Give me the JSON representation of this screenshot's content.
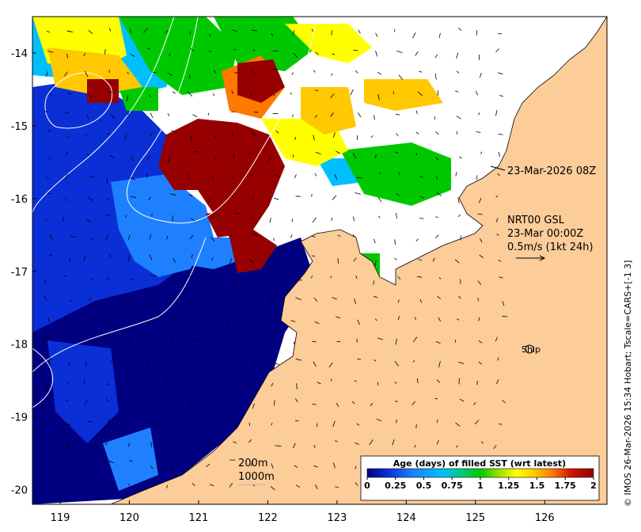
{
  "map": {
    "x_ticks": [
      "119",
      "120",
      "121",
      "122",
      "123",
      "124",
      "125",
      "126"
    ],
    "y_ticks": [
      "-14",
      "-15",
      "-16",
      "-17",
      "-18",
      "-19",
      "-20"
    ],
    "lon_range": [
      118.6,
      126.9
    ],
    "lat_range": [
      -20.2,
      -13.5
    ],
    "land_color": "#fccc99",
    "ocean_missing_color": "#ffffff"
  },
  "annotations": {
    "timestamp": "23-Mar-2026 08Z",
    "current_product": "NRT00 GSL",
    "current_time": "23-Mar 00:00Z",
    "current_scale": "0.5m/s (1kt 24h)",
    "ship_label": "Ship",
    "contour_200": "200m",
    "contour_1000": "1000m"
  },
  "colorbar": {
    "title": "Age (days) of filled SST (wrt latest)",
    "ticks": [
      "0",
      "0.25",
      "0.5",
      "0.75",
      "1",
      "1.25",
      "1.5",
      "1.75",
      "2"
    ],
    "range": [
      0,
      2
    ],
    "colors": [
      "#000080",
      "#0a2fd6",
      "#1e80ff",
      "#00bfff",
      "#00c97a",
      "#00c800",
      "#9be000",
      "#ffff00",
      "#ffc800",
      "#ff7800",
      "#d21400",
      "#960000"
    ]
  },
  "credit": "© IMOS 26-Mar-2026 15:34 Hobart; Tscale=CARS+[-1 3]"
}
